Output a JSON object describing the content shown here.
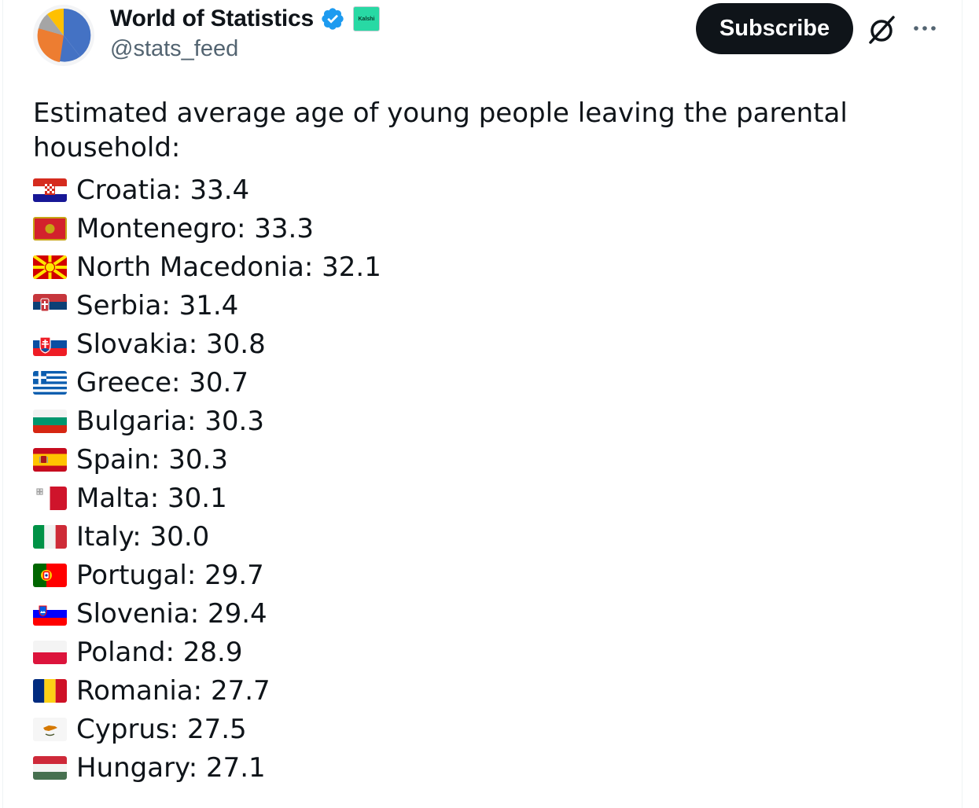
{
  "account": {
    "display_name": "World of Statistics",
    "handle": "@stats_feed",
    "affiliate_badge": "Kalshi",
    "avatar_colors": [
      "#4472c4",
      "#ed7d31",
      "#a5a5a5",
      "#ffc000"
    ],
    "verified_color": "#1d9bf0"
  },
  "actions": {
    "subscribe_label": "Subscribe",
    "grok_icon": "grok-icon",
    "more_icon": "more-icon"
  },
  "post": {
    "intro": "Estimated average age of young people leaving the parental household:",
    "items": [
      {
        "flag": "croatia-flag-icon",
        "text": "Croatia: 33.4"
      },
      {
        "flag": "montenegro-flag-icon",
        "text": "Montenegro: 33.3"
      },
      {
        "flag": "north-macedonia-flag-icon",
        "text": "North Macedonia: 32.1"
      },
      {
        "flag": "serbia-flag-icon",
        "text": "Serbia: 31.4"
      },
      {
        "flag": "slovakia-flag-icon",
        "text": "Slovakia: 30.8"
      },
      {
        "flag": "greece-flag-icon",
        "text": "Greece: 30.7"
      },
      {
        "flag": "bulgaria-flag-icon",
        "text": "Bulgaria: 30.3"
      },
      {
        "flag": "spain-flag-icon",
        "text": "Spain: 30.3"
      },
      {
        "flag": "malta-flag-icon",
        "text": "Malta: 30.1"
      },
      {
        "flag": "italy-flag-icon",
        "text": "Italy: 30.0"
      },
      {
        "flag": "portugal-flag-icon",
        "text": "Portugal: 29.7"
      },
      {
        "flag": "slovenia-flag-icon",
        "text": "Slovenia: 29.4"
      },
      {
        "flag": "poland-flag-icon",
        "text": "Poland: 28.9"
      },
      {
        "flag": "romania-flag-icon",
        "text": "Romania: 27.7"
      },
      {
        "flag": "cyprus-flag-icon",
        "text": "Cyprus: 27.5"
      },
      {
        "flag": "hungary-flag-icon",
        "text": "Hungary: 27.1"
      }
    ]
  }
}
